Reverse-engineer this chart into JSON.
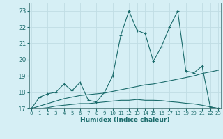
{
  "xlabel": "Humidex (Indice chaleur)",
  "bg_color": "#d6eff5",
  "grid_color": "#c0dde4",
  "line_color": "#1a6b6b",
  "x_values": [
    0,
    1,
    2,
    3,
    4,
    5,
    6,
    7,
    8,
    9,
    10,
    11,
    12,
    13,
    14,
    15,
    16,
    17,
    18,
    19,
    20,
    21,
    22,
    23
  ],
  "series1": [
    17.0,
    17.7,
    17.9,
    18.0,
    18.5,
    18.1,
    18.6,
    17.5,
    17.4,
    18.0,
    19.0,
    21.5,
    23.0,
    21.8,
    21.6,
    19.9,
    20.8,
    22.0,
    23.0,
    19.3,
    19.2,
    19.6,
    17.1,
    17.0
  ],
  "series2_line": [
    17.0,
    17.15,
    17.3,
    17.45,
    17.6,
    17.7,
    17.8,
    17.85,
    17.9,
    17.95,
    18.05,
    18.15,
    18.25,
    18.35,
    18.45,
    18.5,
    18.6,
    18.7,
    18.8,
    18.9,
    19.0,
    19.15,
    19.25,
    19.35
  ],
  "series3_line": [
    17.0,
    17.0,
    17.05,
    17.15,
    17.2,
    17.25,
    17.3,
    17.3,
    17.35,
    17.4,
    17.45,
    17.5,
    17.5,
    17.55,
    17.5,
    17.5,
    17.48,
    17.42,
    17.38,
    17.32,
    17.28,
    17.2,
    17.1,
    17.0
  ],
  "ylim": [
    17,
    23.5
  ],
  "yticks": [
    17,
    18,
    19,
    20,
    21,
    22,
    23
  ],
  "xticks": [
    0,
    1,
    2,
    3,
    4,
    5,
    6,
    7,
    8,
    9,
    10,
    11,
    12,
    13,
    14,
    15,
    16,
    17,
    18,
    19,
    20,
    21,
    22,
    23
  ],
  "xlim": [
    -0.3,
    23.3
  ]
}
